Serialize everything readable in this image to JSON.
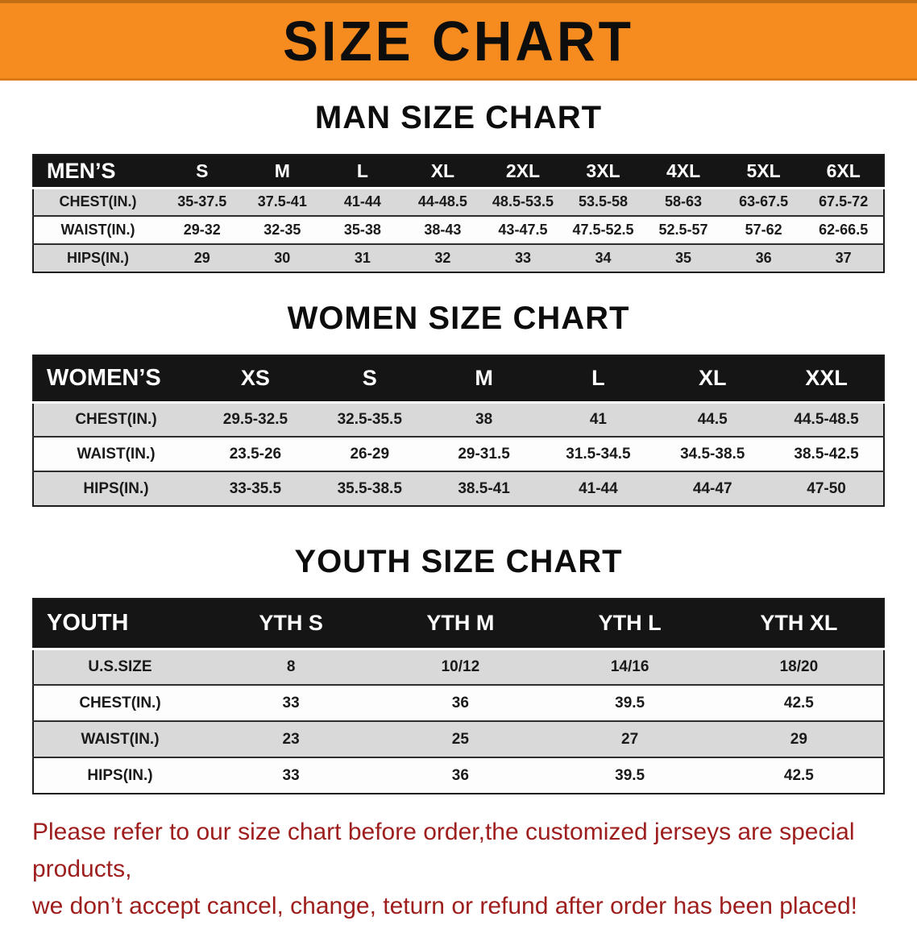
{
  "banner": {
    "title": "SIZE CHART"
  },
  "sections": [
    {
      "id": "men",
      "title": "MAN SIZE CHART",
      "table": {
        "header": [
          "MEN’S",
          "S",
          "M",
          "L",
          "XL",
          "2XL",
          "3XL",
          "4XL",
          "5XL",
          "6XL"
        ],
        "rows": [
          [
            "CHEST(IN.)",
            "35-37.5",
            "37.5-41",
            "41-44",
            "44-48.5",
            "48.5-53.5",
            "53.5-58",
            "58-63",
            "63-67.5",
            "67.5-72"
          ],
          [
            "WAIST(IN.)",
            "29-32",
            "32-35",
            "35-38",
            "38-43",
            "43-47.5",
            "47.5-52.5",
            "52.5-57",
            "57-62",
            "62-66.5"
          ],
          [
            "HIPS(IN.)",
            "29",
            "30",
            "31",
            "32",
            "33",
            "34",
            "35",
            "36",
            "37"
          ]
        ]
      }
    },
    {
      "id": "women",
      "title": "WOMEN SIZE CHART",
      "table": {
        "header": [
          "WOMEN’S",
          "XS",
          "S",
          "M",
          "L",
          "XL",
          "XXL"
        ],
        "rows": [
          [
            "CHEST(IN.)",
            "29.5-32.5",
            "32.5-35.5",
            "38",
            "41",
            "44.5",
            "44.5-48.5"
          ],
          [
            "WAIST(IN.)",
            "23.5-26",
            "26-29",
            "29-31.5",
            "31.5-34.5",
            "34.5-38.5",
            "38.5-42.5"
          ],
          [
            "HIPS(IN.)",
            "33-35.5",
            "35.5-38.5",
            "38.5-41",
            "41-44",
            "44-47",
            "47-50"
          ]
        ]
      }
    },
    {
      "id": "youth",
      "title": "YOUTH SIZE CHART",
      "table": {
        "header": [
          "YOUTH",
          "YTH S",
          "YTH M",
          "YTH L",
          "YTH XL"
        ],
        "rows": [
          [
            "U.S.SIZE",
            "8",
            "10/12",
            "14/16",
            "18/20"
          ],
          [
            "CHEST(IN.)",
            "33",
            "36",
            "39.5",
            "42.5"
          ],
          [
            "WAIST(IN.)",
            "23",
            "25",
            "27",
            "29"
          ],
          [
            "HIPS(IN.)",
            "33",
            "36",
            "39.5",
            "42.5"
          ]
        ]
      }
    }
  ],
  "footer": {
    "lines": [
      "Please refer to our size chart before order,the customized jerseys are special products,",
      "we don’t accept cancel, change, teturn or refund after order has been placed!"
    ]
  },
  "colors": {
    "banner_bg": "#f68b1f",
    "table_header_bg": "#151515",
    "row_alt_bg": "#d9d9d9",
    "footer_text": "#9e1d1d"
  }
}
